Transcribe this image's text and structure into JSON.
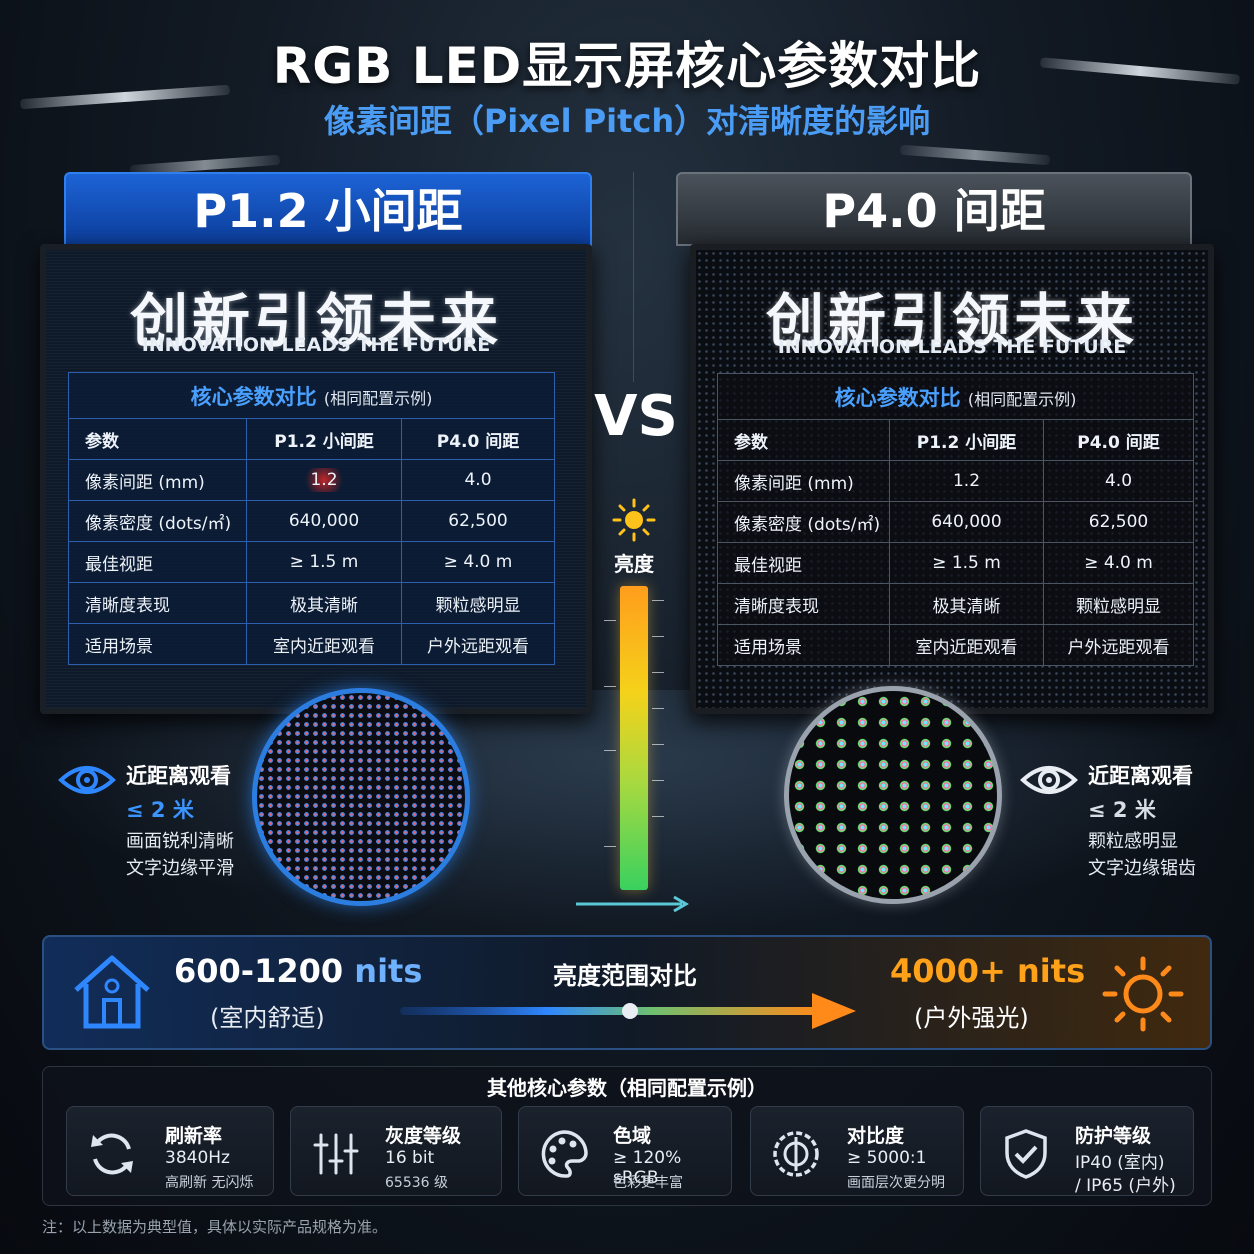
{
  "title": "RGB LED显示屏核心参数对比",
  "subtitle": "像素间距（Pixel Pitch）对清晰度的影响",
  "left_panel": {
    "tag": "P1.2 小间距",
    "screen_title": "创新引领未来",
    "screen_subtitle": "INNOVATION LEADS THE FUTURE",
    "view_title": "近距离观看",
    "view_dist": "≤ 2 米",
    "view_desc_1": "画面锐利清晰",
    "view_desc_2": "文字边缘平滑"
  },
  "right_panel": {
    "tag": "P4.0 间距",
    "screen_title": "创新引领未来",
    "screen_subtitle": "INNOVATION LEADS THE FUTURE",
    "view_title": "近距离观看",
    "view_dist": "≤ 2 米",
    "view_desc_1": "颗粒感明显",
    "view_desc_2": "文字边缘锯齿"
  },
  "table": {
    "caption": "核心参数对比",
    "caption_note": "(相同配置示例)",
    "headers": [
      "参数",
      "P1.2 小间距",
      "P4.0 间距"
    ],
    "rows": [
      [
        "像素间距 (mm)",
        "1.2",
        "4.0"
      ],
      [
        "像素密度 (dots/㎡)",
        "640,000",
        "62,500"
      ],
      [
        "最佳视距",
        "≥ 1.5 m",
        "≥ 4.0 m"
      ],
      [
        "清晰度表现",
        "极其清晰",
        "颗粒感明显"
      ],
      [
        "适用场景",
        "室内近距观看",
        "户外远距观看"
      ]
    ]
  },
  "vs": "VS",
  "brightness_label": "亮度",
  "brightness_range": {
    "left_value": "600-1200",
    "left_unit": "nits",
    "left_note": "(室内舒适)",
    "center_label": "亮度范围对比",
    "right_value": "4000+ nits",
    "right_note": "(户外强光)"
  },
  "other_params": {
    "title": "其他核心参数（相同配置示例）",
    "items": [
      {
        "icon": "refresh-icon",
        "name": "刷新率",
        "value": "3840Hz",
        "sub": "高刷新 无闪烁"
      },
      {
        "icon": "grayscale-icon",
        "name": "灰度等级",
        "value": "16 bit",
        "sub": "65536 级"
      },
      {
        "icon": "palette-icon",
        "name": "色域",
        "value": "≥ 120% sRGB",
        "sub": "色彩更丰富"
      },
      {
        "icon": "contrast-icon",
        "name": "对比度",
        "value": "≥ 5000:1",
        "sub": "画面层次更分明"
      },
      {
        "icon": "shield-icon",
        "name": "防护等级",
        "value": "IP40 (室内)",
        "sub": "/ IP65 (户外)"
      }
    ]
  },
  "footnote": "注：以上数据为典型值，具体以实际产品规格为准。",
  "colors": {
    "accent_blue": "#2f7ff0",
    "accent_orange": "#ffa21a",
    "bar_top": "#ff9d1c",
    "bar_bottom": "#39d15f"
  }
}
